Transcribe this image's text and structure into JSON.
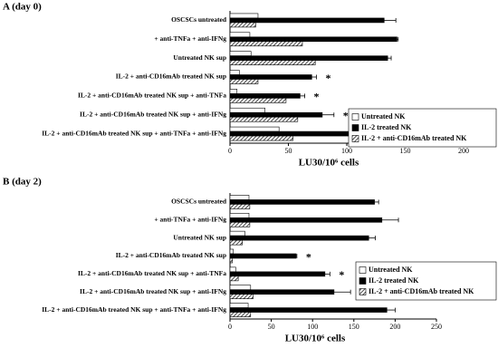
{
  "chart_data": [
    {
      "type": "hbar",
      "title": "A (day 0)",
      "x_label": "LU30/10⁶ cells",
      "categories": [
        "OSCSCs untreated",
        "+ anti-TNFa + anti-IFNg",
        "Untreated NK sup",
        "IL-2 + anti-CD16mAb treated NK sup",
        "IL-2 + anti-CD16mAb treated NK sup + anti-TNFa",
        "IL-2 + anti-CD16mAb treated NK sup + anti-IFNg",
        "IL-2 + anti-CD16mAb treated NK sup + anti-TNFa + anti-IFNg"
      ],
      "series": [
        {
          "name": "Untreated NK",
          "color": "#ffffff",
          "values": [
            24,
            17,
            18,
            8,
            6,
            30,
            42
          ]
        },
        {
          "name": "IL-2 treated NK",
          "color": "#000000",
          "values": [
            132,
            143,
            135,
            70,
            60,
            79,
            176
          ],
          "errors": [
            10,
            1,
            3,
            4,
            4,
            10,
            6
          ]
        },
        {
          "name": "IL-2 + anti-CD16mAb treated NK",
          "color": "#000000",
          "hatch": true,
          "values": [
            22,
            62,
            73,
            24,
            48,
            58,
            54
          ]
        }
      ],
      "xlim": [
        0,
        200
      ],
      "xticks": [
        0,
        50,
        100,
        150,
        200
      ],
      "annotations": [
        {
          "category": 3,
          "text": "*"
        },
        {
          "category": 4,
          "text": "*"
        },
        {
          "category": 5,
          "text": "*"
        }
      ]
    },
    {
      "type": "hbar",
      "title": "B (day 2)",
      "x_label": "LU30/10⁶ cells",
      "categories": [
        "OSCSCs untreated",
        "+ anti-TNFa + anti-IFNg",
        "Untreated NK sup",
        "IL-2 + anti-CD16mAb treated NK sup",
        "IL-2 + anti-CD16mAb treated NK sup + anti-TNFa",
        "IL-2 + anti-CD16mAb treated NK sup + anti-IFNg",
        "IL-2 + anti-CD16mAb treated NK sup + anti-TNFa + anti-IFNg"
      ],
      "series": [
        {
          "name": "Untreated NK",
          "color": "#ffffff",
          "values": [
            23,
            23,
            18,
            4,
            7,
            25,
            22
          ]
        },
        {
          "name": "IL-2 treated NK",
          "color": "#000000",
          "values": [
            175,
            184,
            168,
            80,
            115,
            126,
            190
          ],
          "errors": [
            5,
            20,
            8,
            1,
            6,
            20,
            10
          ]
        },
        {
          "name": "IL-2 + anti-CD16mAb treated NK",
          "color": "#000000",
          "hatch": true,
          "values": [
            24,
            24,
            15,
            3,
            10,
            28,
            25
          ]
        }
      ],
      "xlim": [
        0,
        250
      ],
      "xticks": [
        0,
        50,
        100,
        150,
        200,
        250
      ],
      "annotations": [
        {
          "category": 3,
          "text": "*"
        },
        {
          "category": 4,
          "text": "*"
        }
      ]
    }
  ]
}
